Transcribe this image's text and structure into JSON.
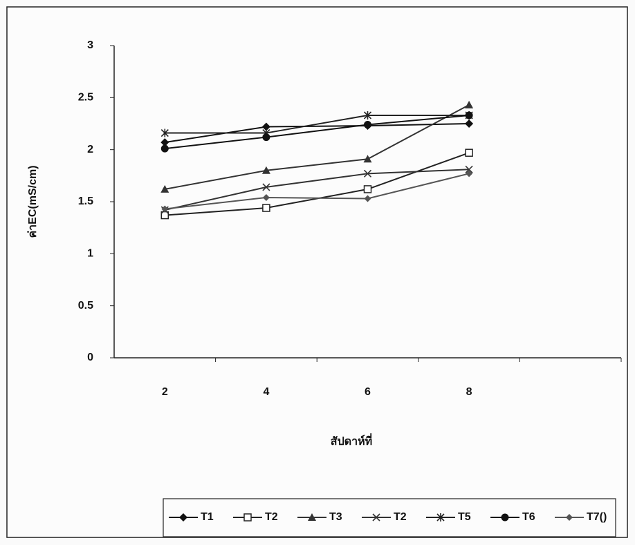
{
  "chart_data": {
    "type": "line",
    "categories": [
      "2",
      "4",
      "6",
      "8",
      null
    ],
    "y_label": "ค่าEC(mS/cm)",
    "x_label": "สัปดาห์ที่",
    "ylim": [
      0,
      3
    ],
    "yticks": [
      0,
      0.5,
      1,
      1.5,
      2,
      2.5,
      3
    ],
    "grid": false,
    "legend": "bottom",
    "series": [
      {
        "name": "T1",
        "color": "#111111",
        "marker": "diamond",
        "values": [
          2.07,
          2.22,
          2.23,
          2.25,
          null
        ]
      },
      {
        "name": "T2",
        "color": "#222222",
        "marker": "square-open",
        "values": [
          1.37,
          1.44,
          1.62,
          1.97,
          null
        ]
      },
      {
        "name": "T3",
        "color": "#333333",
        "marker": "triangle",
        "values": [
          1.62,
          1.8,
          1.91,
          2.43,
          null
        ]
      },
      {
        "name": "T2",
        "color": "#333333",
        "marker": "x",
        "values": [
          1.42,
          1.64,
          1.77,
          1.81,
          null
        ]
      },
      {
        "name": "T5",
        "color": "#222222",
        "marker": "star",
        "values": [
          2.16,
          2.16,
          2.33,
          2.33,
          null
        ]
      },
      {
        "name": "T6",
        "color": "#111111",
        "marker": "circle",
        "values": [
          2.01,
          2.12,
          2.24,
          2.33,
          null
        ]
      },
      {
        "name": "T7()",
        "color": "#555555",
        "marker": "diamond-small",
        "values": [
          1.43,
          1.54,
          1.53,
          1.77,
          null
        ]
      }
    ]
  }
}
